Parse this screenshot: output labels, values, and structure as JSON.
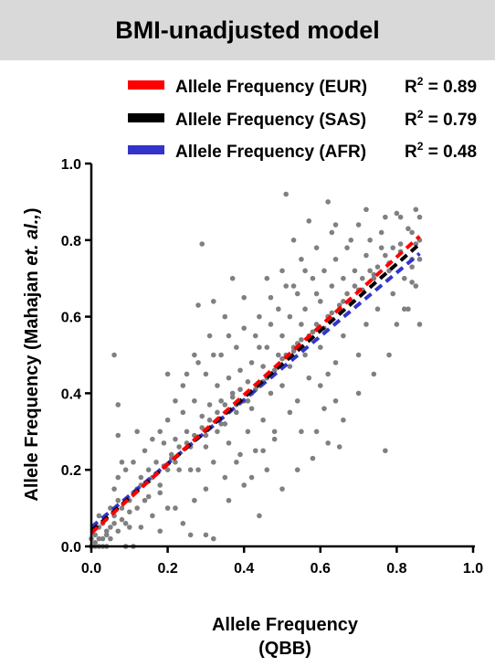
{
  "title": "BMI-unadjusted model",
  "colors": {
    "title_bg": "#d9d9d9",
    "points": "#808080",
    "axis": "#000000"
  },
  "chart_data": {
    "type": "scatter",
    "title": "BMI-unadjusted model",
    "xlabel_line1": "Allele Frequency",
    "xlabel_line2": "(QBB)",
    "ylabel_prefix": "Allele Frequency (Mahajan ",
    "ylabel_italic": "et. al.,",
    "ylabel_suffix": ")",
    "xlim": [
      0.0,
      1.0
    ],
    "ylim": [
      0.0,
      1.0
    ],
    "x_ticks": [
      "0.0",
      "0.2",
      "0.4",
      "0.6",
      "0.8",
      "1.0"
    ],
    "y_ticks": [
      "0.0",
      "0.2",
      "0.4",
      "0.6",
      "0.8",
      "1.0"
    ],
    "grid": false,
    "legend_position": "top-right",
    "regression_lines": [
      {
        "label": "Allele Frequency (EUR)",
        "r2_text": "= 0.89",
        "r2_value": 0.89,
        "color": "#ff0000",
        "start": [
          0.0,
          0.035
        ],
        "end": [
          0.86,
          0.81
        ]
      },
      {
        "label": "Allele Frequency (SAS)",
        "r2_text": "= 0.79",
        "r2_value": 0.79,
        "color": "#000000",
        "start": [
          0.0,
          0.04
        ],
        "end": [
          0.86,
          0.79
        ]
      },
      {
        "label": "Allele Frequency (AFR)",
        "r2_text": "= 0.48",
        "r2_value": 0.48,
        "color": "#3333cc",
        "start": [
          0.0,
          0.05
        ],
        "end": [
          0.86,
          0.765
        ]
      }
    ],
    "points": [
      [
        0.0,
        0.0
      ],
      [
        0.01,
        0.01
      ],
      [
        0.02,
        0.0
      ],
      [
        0.01,
        0.03
      ],
      [
        0.0,
        0.02
      ],
      [
        0.03,
        0.02
      ],
      [
        0.02,
        0.05
      ],
      [
        0.04,
        0.03
      ],
      [
        0.03,
        0.06
      ],
      [
        0.05,
        0.05
      ],
      [
        0.06,
        0.08
      ],
      [
        0.05,
        0.1
      ],
      [
        0.07,
        0.12
      ],
      [
        0.06,
        0.15
      ],
      [
        0.08,
        0.1
      ],
      [
        0.07,
        0.18
      ],
      [
        0.09,
        0.2
      ],
      [
        0.1,
        0.12
      ],
      [
        0.06,
        0.5
      ],
      [
        0.07,
        0.37
      ],
      [
        0.07,
        0.29
      ],
      [
        0.08,
        0.22
      ],
      [
        0.1,
        0.05
      ],
      [
        0.12,
        0.15
      ],
      [
        0.11,
        0.22
      ],
      [
        0.13,
        0.18
      ],
      [
        0.14,
        0.25
      ],
      [
        0.15,
        0.2
      ],
      [
        0.12,
        0.3
      ],
      [
        0.15,
        0.13
      ],
      [
        0.16,
        0.28
      ],
      [
        0.17,
        0.22
      ],
      [
        0.18,
        0.3
      ],
      [
        0.18,
        0.16
      ],
      [
        0.19,
        0.27
      ],
      [
        0.2,
        0.33
      ],
      [
        0.2,
        0.45
      ],
      [
        0.21,
        0.24
      ],
      [
        0.22,
        0.38
      ],
      [
        0.22,
        0.28
      ],
      [
        0.23,
        0.2
      ],
      [
        0.24,
        0.35
      ],
      [
        0.24,
        0.42
      ],
      [
        0.25,
        0.3
      ],
      [
        0.26,
        0.26
      ],
      [
        0.27,
        0.5
      ],
      [
        0.27,
        0.38
      ],
      [
        0.28,
        0.63
      ],
      [
        0.28,
        0.2
      ],
      [
        0.29,
        0.79
      ],
      [
        0.29,
        0.34
      ],
      [
        0.3,
        0.45
      ],
      [
        0.3,
        0.29
      ],
      [
        0.31,
        0.55
      ],
      [
        0.31,
        0.37
      ],
      [
        0.32,
        0.64
      ],
      [
        0.32,
        0.22
      ],
      [
        0.33,
        0.42
      ],
      [
        0.33,
        0.3
      ],
      [
        0.34,
        0.5
      ],
      [
        0.34,
        0.38
      ],
      [
        0.35,
        0.32
      ],
      [
        0.35,
        0.6
      ],
      [
        0.36,
        0.44
      ],
      [
        0.36,
        0.27
      ],
      [
        0.37,
        0.7
      ],
      [
        0.37,
        0.4
      ],
      [
        0.38,
        0.52
      ],
      [
        0.38,
        0.35
      ],
      [
        0.39,
        0.24
      ],
      [
        0.39,
        0.46
      ],
      [
        0.4,
        0.38
      ],
      [
        0.4,
        0.57
      ],
      [
        0.41,
        0.43
      ],
      [
        0.41,
        0.3
      ],
      [
        0.42,
        0.48
      ],
      [
        0.42,
        0.36
      ],
      [
        0.43,
        0.55
      ],
      [
        0.43,
        0.25
      ],
      [
        0.44,
        0.42
      ],
      [
        0.44,
        0.6
      ],
      [
        0.45,
        0.47
      ],
      [
        0.45,
        0.33
      ],
      [
        0.46,
        0.52
      ],
      [
        0.46,
        0.7
      ],
      [
        0.47,
        0.4
      ],
      [
        0.47,
        0.58
      ],
      [
        0.48,
        0.46
      ],
      [
        0.48,
        0.28
      ],
      [
        0.49,
        0.62
      ],
      [
        0.49,
        0.5
      ],
      [
        0.5,
        0.55
      ],
      [
        0.5,
        0.42
      ],
      [
        0.51,
        0.92
      ],
      [
        0.51,
        0.68
      ],
      [
        0.52,
        0.47
      ],
      [
        0.52,
        0.6
      ],
      [
        0.53,
        0.8
      ],
      [
        0.53,
        0.52
      ],
      [
        0.54,
        0.66
      ],
      [
        0.54,
        0.38
      ],
      [
        0.55,
        0.58
      ],
      [
        0.55,
        0.75
      ],
      [
        0.56,
        0.5
      ],
      [
        0.56,
        0.62
      ],
      [
        0.57,
        0.85
      ],
      [
        0.57,
        0.44
      ],
      [
        0.58,
        0.7
      ],
      [
        0.58,
        0.56
      ],
      [
        0.59,
        0.78
      ],
      [
        0.59,
        0.3
      ],
      [
        0.6,
        0.64
      ],
      [
        0.6,
        0.52
      ],
      [
        0.61,
        0.72
      ],
      [
        0.61,
        0.36
      ],
      [
        0.62,
        0.9
      ],
      [
        0.62,
        0.6
      ],
      [
        0.63,
        0.68
      ],
      [
        0.63,
        0.82
      ],
      [
        0.64,
        0.48
      ],
      [
        0.64,
        0.75
      ],
      [
        0.65,
        0.62
      ],
      [
        0.65,
        0.26
      ],
      [
        0.66,
        0.7
      ],
      [
        0.66,
        0.55
      ],
      [
        0.67,
        0.78
      ],
      [
        0.68,
        0.64
      ],
      [
        0.69,
        0.72
      ],
      [
        0.7,
        0.5
      ],
      [
        0.7,
        0.84
      ],
      [
        0.71,
        0.67
      ],
      [
        0.72,
        0.76
      ],
      [
        0.72,
        0.58
      ],
      [
        0.73,
        0.8
      ],
      [
        0.74,
        0.7
      ],
      [
        0.75,
        0.62
      ],
      [
        0.76,
        0.78
      ],
      [
        0.77,
        0.25
      ],
      [
        0.77,
        0.86
      ],
      [
        0.78,
        0.72
      ],
      [
        0.79,
        0.66
      ],
      [
        0.8,
        0.87
      ],
      [
        0.8,
        0.58
      ],
      [
        0.81,
        0.77
      ],
      [
        0.82,
        0.7
      ],
      [
        0.83,
        0.83
      ],
      [
        0.83,
        0.62
      ],
      [
        0.84,
        0.75
      ],
      [
        0.85,
        0.88
      ],
      [
        0.85,
        0.68
      ],
      [
        0.86,
        0.8
      ],
      [
        0.86,
        0.58
      ],
      [
        0.02,
        0.08
      ],
      [
        0.04,
        0.0
      ],
      [
        0.09,
        0.0
      ],
      [
        0.11,
        0.0
      ],
      [
        0.13,
        0.05
      ],
      [
        0.16,
        0.08
      ],
      [
        0.18,
        0.04
      ],
      [
        0.2,
        0.1
      ],
      [
        0.24,
        0.06
      ],
      [
        0.26,
        0.03
      ],
      [
        0.3,
        0.03
      ],
      [
        0.32,
        0.02
      ],
      [
        0.36,
        0.12
      ],
      [
        0.4,
        0.16
      ],
      [
        0.44,
        0.08
      ],
      [
        0.46,
        0.2
      ],
      [
        0.5,
        0.15
      ],
      [
        0.54,
        0.2
      ],
      [
        0.58,
        0.23
      ],
      [
        0.62,
        0.27
      ],
      [
        0.66,
        0.33
      ],
      [
        0.7,
        0.4
      ],
      [
        0.74,
        0.45
      ],
      [
        0.78,
        0.5
      ],
      [
        0.82,
        0.62
      ],
      [
        0.84,
        0.69
      ],
      [
        0.26,
        0.2
      ],
      [
        0.3,
        0.26
      ],
      [
        0.34,
        0.32
      ],
      [
        0.38,
        0.37
      ],
      [
        0.42,
        0.4
      ],
      [
        0.46,
        0.44
      ],
      [
        0.5,
        0.49
      ],
      [
        0.54,
        0.53
      ],
      [
        0.58,
        0.56
      ],
      [
        0.62,
        0.6
      ],
      [
        0.66,
        0.64
      ],
      [
        0.7,
        0.67
      ],
      [
        0.74,
        0.71
      ],
      [
        0.78,
        0.74
      ],
      [
        0.2,
        0.2
      ],
      [
        0.22,
        0.22
      ],
      [
        0.16,
        0.18
      ],
      [
        0.14,
        0.12
      ],
      [
        0.12,
        0.1
      ],
      [
        0.1,
        0.09
      ],
      [
        0.08,
        0.07
      ],
      [
        0.06,
        0.06
      ],
      [
        0.04,
        0.04
      ],
      [
        0.02,
        0.02
      ],
      [
        0.01,
        0.0
      ],
      [
        0.03,
        0.0
      ],
      [
        0.05,
        0.02
      ],
      [
        0.07,
        0.04
      ],
      [
        0.09,
        0.06
      ],
      [
        0.11,
        0.14
      ],
      [
        0.13,
        0.16
      ],
      [
        0.15,
        0.17
      ],
      [
        0.17,
        0.19
      ],
      [
        0.19,
        0.21
      ],
      [
        0.21,
        0.23
      ],
      [
        0.23,
        0.26
      ],
      [
        0.25,
        0.27
      ],
      [
        0.27,
        0.29
      ],
      [
        0.29,
        0.31
      ],
      [
        0.31,
        0.33
      ],
      [
        0.33,
        0.35
      ],
      [
        0.35,
        0.37
      ],
      [
        0.37,
        0.39
      ],
      [
        0.39,
        0.41
      ],
      [
        0.41,
        0.38
      ],
      [
        0.43,
        0.41
      ],
      [
        0.45,
        0.43
      ],
      [
        0.47,
        0.45
      ],
      [
        0.49,
        0.47
      ],
      [
        0.51,
        0.5
      ],
      [
        0.53,
        0.51
      ],
      [
        0.55,
        0.54
      ],
      [
        0.57,
        0.55
      ],
      [
        0.59,
        0.58
      ],
      [
        0.61,
        0.57
      ],
      [
        0.63,
        0.61
      ],
      [
        0.65,
        0.63
      ],
      [
        0.67,
        0.66
      ],
      [
        0.69,
        0.68
      ],
      [
        0.71,
        0.7
      ],
      [
        0.73,
        0.72
      ],
      [
        0.75,
        0.73
      ],
      [
        0.77,
        0.76
      ],
      [
        0.79,
        0.78
      ],
      [
        0.81,
        0.79
      ],
      [
        0.84,
        0.82
      ],
      [
        0.86,
        0.86
      ],
      [
        0.86,
        0.75
      ],
      [
        0.85,
        0.79
      ],
      [
        0.84,
        0.73
      ],
      [
        0.6,
        0.42
      ],
      [
        0.62,
        0.45
      ],
      [
        0.64,
        0.38
      ],
      [
        0.55,
        0.3
      ],
      [
        0.52,
        0.35
      ],
      [
        0.48,
        0.3
      ],
      [
        0.45,
        0.25
      ],
      [
        0.42,
        0.18
      ],
      [
        0.38,
        0.22
      ],
      [
        0.35,
        0.18
      ],
      [
        0.3,
        0.15
      ],
      [
        0.27,
        0.12
      ],
      [
        0.22,
        0.1
      ],
      [
        0.18,
        0.14
      ],
      [
        0.25,
        0.45
      ],
      [
        0.28,
        0.48
      ],
      [
        0.32,
        0.5
      ],
      [
        0.36,
        0.55
      ],
      [
        0.4,
        0.65
      ],
      [
        0.44,
        0.52
      ],
      [
        0.47,
        0.65
      ],
      [
        0.5,
        0.72
      ],
      [
        0.53,
        0.68
      ],
      [
        0.56,
        0.72
      ],
      [
        0.59,
        0.66
      ],
      [
        0.64,
        0.84
      ],
      [
        0.68,
        0.8
      ],
      [
        0.72,
        0.88
      ],
      [
        0.76,
        0.82
      ],
      [
        0.81,
        0.86
      ]
    ]
  }
}
